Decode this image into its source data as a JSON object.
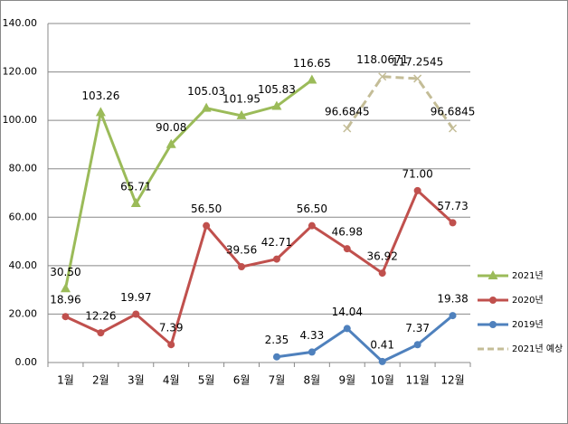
{
  "chart_data": {
    "type": "line",
    "categories": [
      "1월",
      "2월",
      "3월",
      "4월",
      "5월",
      "6월",
      "7월",
      "8월",
      "9월",
      "10월",
      "11월",
      "12월"
    ],
    "series": [
      {
        "name": "2021년",
        "color": "#9bbb59",
        "marker": "triangle",
        "dashed": false,
        "values": [
          30.5,
          103.26,
          65.71,
          90.08,
          105.03,
          101.95,
          105.83,
          116.65,
          null,
          null,
          null,
          null
        ],
        "value_labels": [
          "30.50",
          "103.26",
          "65.71",
          "90.08",
          "105.03",
          "101.95",
          "105.83",
          "116.65",
          null,
          null,
          null,
          null
        ]
      },
      {
        "name": "2020년",
        "color": "#c0504d",
        "marker": "circle",
        "dashed": false,
        "values": [
          18.96,
          12.26,
          19.97,
          7.39,
          56.5,
          39.56,
          42.71,
          56.5,
          46.98,
          36.92,
          71,
          57.73
        ],
        "value_labels": [
          "18.96",
          "12.26",
          "19.97",
          "7.39",
          "56.50",
          "39.56",
          "42.71",
          "56.50",
          "46.98",
          "36.92",
          "71.00",
          "57.73"
        ]
      },
      {
        "name": "2019년",
        "color": "#4f81bd",
        "marker": "circle",
        "dashed": false,
        "values": [
          null,
          null,
          null,
          null,
          null,
          null,
          2.35,
          4.33,
          14.04,
          0.41,
          7.37,
          19.38
        ],
        "value_labels": [
          null,
          null,
          null,
          null,
          null,
          null,
          "2.35",
          "4.33",
          "14.04",
          "0.41",
          "7.37",
          "19.38"
        ]
      },
      {
        "name": "2021년 예상",
        "color": "#c4bd97",
        "marker": "x",
        "dashed": true,
        "values": [
          null,
          null,
          null,
          null,
          null,
          null,
          null,
          null,
          96.6845,
          118.0671,
          117.2545,
          96.6845
        ],
        "value_labels": [
          null,
          null,
          null,
          null,
          null,
          null,
          null,
          null,
          "96.6845",
          "118.0671",
          "117.2545",
          "96.6845"
        ]
      }
    ],
    "ylim": [
      0,
      140
    ],
    "yticks": [
      {
        "value": 0,
        "label": "0.00"
      },
      {
        "value": 20,
        "label": "20.00"
      },
      {
        "value": 40,
        "label": "40.00"
      },
      {
        "value": 60,
        "label": "60.00"
      },
      {
        "value": 80,
        "label": "80.00"
      },
      {
        "value": 100,
        "label": "100.00"
      },
      {
        "value": 120,
        "label": "120.00"
      },
      {
        "value": 140,
        "label": "140.00"
      }
    ],
    "grid": true,
    "legend": "right"
  }
}
